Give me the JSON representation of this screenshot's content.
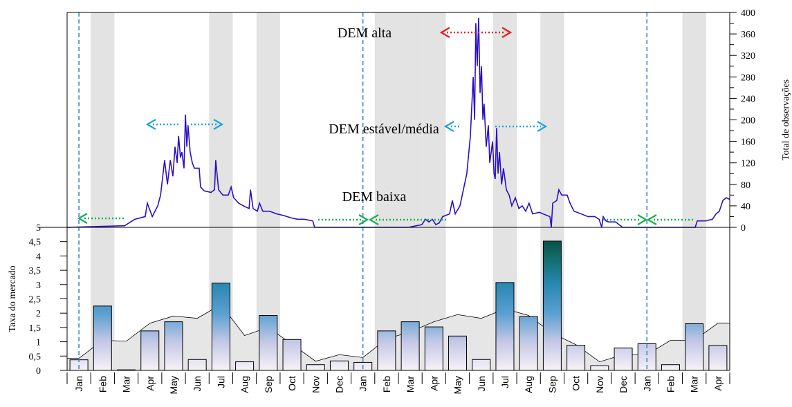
{
  "chart_data": [
    {
      "type": "line",
      "x": [
        0,
        2.43,
        2.86,
        3.3,
        3.39,
        3.6,
        3.83,
        3.95,
        4.12,
        4.24,
        4.36,
        4.47,
        4.56,
        4.65,
        4.71,
        4.79,
        4.85,
        4.94,
        5.0,
        5.06,
        5.11,
        5.2,
        5.29,
        5.38,
        5.58,
        5.64,
        5.79,
        6.08,
        6.23,
        6.28,
        6.4,
        6.58,
        6.81,
        6.93,
        7.04,
        7.25,
        7.45,
        7.69,
        7.75,
        7.86,
        8.04,
        8.13,
        8.27,
        8.56,
        8.86,
        9.15,
        9.44,
        9.73,
        10.03,
        10.38,
        10.46,
        14.41,
        14.99,
        15.14,
        15.29,
        15.43,
        15.58,
        15.72,
        15.87,
        16.16,
        16.28,
        16.4,
        16.6,
        16.89,
        17.04,
        17.16,
        17.22,
        17.27,
        17.33,
        17.39,
        17.45,
        17.51,
        17.57,
        17.62,
        17.71,
        17.8,
        17.86,
        17.98,
        18.04,
        18.09,
        18.15,
        18.21,
        18.27,
        18.36,
        18.44,
        18.56,
        18.68,
        18.79,
        18.94,
        19.09,
        19.23,
        19.38,
        19.52,
        19.67,
        19.96,
        20.11,
        20.4,
        20.46,
        20.52,
        20.69,
        20.78,
        20.9,
        21.13,
        21.25,
        21.42,
        21.72,
        22.01,
        22.3,
        22.48,
        22.59,
        22.65,
        22.77,
        22.88,
        23.18,
        23.47,
        26.54,
        26.63,
        26.98,
        27.27,
        27.42,
        27.56,
        27.71,
        27.85,
        28
      ],
      "series": [
        {
          "color": "#2b0fc7",
          "values": [
            0,
            3,
            15,
            20,
            45,
            20,
            40,
            60,
            125,
            80,
            125,
            95,
            150,
            120,
            170,
            130,
            140,
            110,
            210,
            150,
            190,
            140,
            120,
            110,
            110,
            75,
            68,
            65,
            70,
            125,
            70,
            60,
            60,
            75,
            55,
            45,
            40,
            35,
            70,
            35,
            30,
            45,
            30,
            30,
            25,
            22,
            18,
            15,
            15,
            12,
            0,
            0,
            5,
            15,
            10,
            15,
            5,
            8,
            20,
            25,
            50,
            25,
            40,
            100,
            170,
            280,
            200,
            380,
            300,
            390,
            250,
            300,
            200,
            230,
            150,
            190,
            120,
            160,
            100,
            90,
            185,
            100,
            140,
            80,
            110,
            70,
            60,
            40,
            55,
            35,
            40,
            30,
            45,
            25,
            28,
            25,
            20,
            0,
            45,
            50,
            70,
            60,
            60,
            45,
            30,
            25,
            20,
            20,
            15,
            0,
            20,
            12,
            10,
            10,
            0,
            0,
            12,
            12,
            15,
            25,
            30,
            50,
            55,
            52
          ]
        }
      ],
      "xlim": [
        0,
        28
      ],
      "ylim": [
        0,
        400
      ],
      "yticks": [
        0,
        40,
        80,
        120,
        160,
        200,
        240,
        280,
        320,
        360,
        400
      ],
      "ylabel": "Total de observações",
      "annotations": [
        {
          "text": "DEM alta",
          "color": "#e8191f"
        },
        {
          "text": "DEM estável/média",
          "color": "#17a6e0"
        },
        {
          "text": "DEM baixa",
          "color": "#14b04a"
        }
      ]
    },
    {
      "type": "bar",
      "categories": [
        "Jan",
        "Feb",
        "Mar",
        "Apr",
        "May",
        "Jun",
        "Jul",
        "Aug",
        "Sep",
        "Oct",
        "Nov",
        "Dec",
        "Jan",
        "Feb",
        "Mar",
        "Apr",
        "May",
        "Jun",
        "Jul",
        "Aug",
        "Sep",
        "Oct",
        "Nov",
        "Dec",
        "Jan",
        "Feb",
        "Mar",
        "Apr"
      ],
      "series": [
        {
          "type": "area",
          "color": "#e6e6e6",
          "values": [
            0.42,
            1.05,
            1.02,
            1.65,
            1.9,
            1.82,
            2.3,
            1.22,
            1.5,
            0.92,
            0.32,
            0.55,
            0.45,
            1.1,
            1.35,
            1.7,
            1.95,
            1.82,
            2.15,
            1.92,
            1.3,
            0.9,
            0.3,
            0.55,
            0.55,
            1.05,
            1.05,
            1.65
          ]
        },
        {
          "type": "bar",
          "gradient": [
            "#f7f2f8",
            "#c4c8e6",
            "#5a9fd0",
            "#2a88b2",
            "#0f6a66",
            "#053a28"
          ],
          "values": [
            0.37,
            2.25,
            0.02,
            1.38,
            1.7,
            0.38,
            3.05,
            0.3,
            1.92,
            1.08,
            0.2,
            0.33,
            0.28,
            1.38,
            1.7,
            1.52,
            1.2,
            0.38,
            3.07,
            1.88,
            4.52,
            0.88,
            0.16,
            0.78,
            0.93,
            0.2,
            1.63,
            0.87
          ]
        }
      ],
      "ylim": [
        0,
        5
      ],
      "yticks": [
        0,
        {
          "value": 0.5,
          "label": "0,5"
        },
        1,
        {
          "value": 1.5,
          "label": "1,5"
        },
        2,
        {
          "value": 2.5,
          "label": "2,5"
        },
        3,
        {
          "value": 3.5,
          "label": "3,5"
        },
        4,
        {
          "value": 4.5,
          "label": "4,5"
        },
        5
      ],
      "ylabel": "Taxa do mercado",
      "shaded_categories": [
        1,
        6,
        8,
        13,
        14,
        15,
        18,
        20,
        26
      ],
      "dashed_categories": [
        0,
        12,
        24
      ]
    }
  ]
}
